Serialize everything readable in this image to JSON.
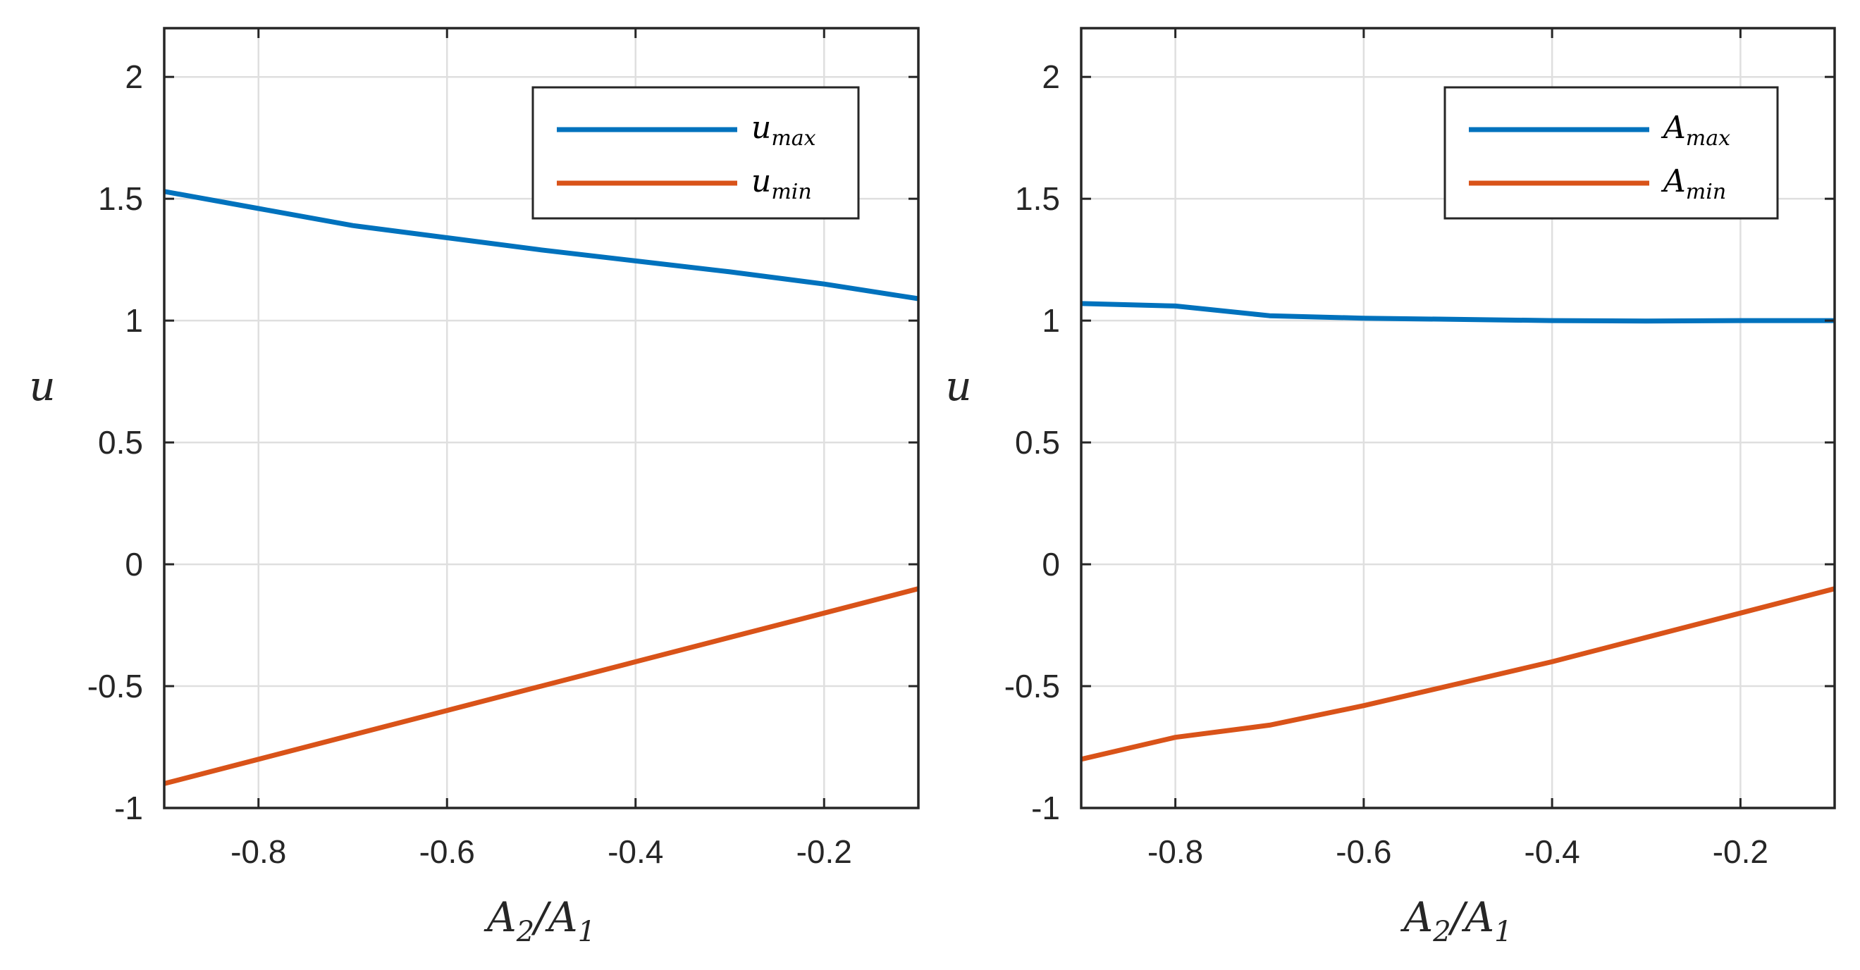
{
  "chart_data": [
    {
      "type": "line",
      "ylabel": "u",
      "xlabel": {
        "base": "A",
        "sub1": "2",
        "slash": "/",
        "base2": "A",
        "sub2": "1"
      },
      "xlim": [
        -0.9,
        -0.1
      ],
      "ylim": [
        -1,
        2.2
      ],
      "xticks": [
        -0.8,
        -0.6,
        -0.4,
        -0.2
      ],
      "xtick_labels": [
        "-0.8",
        "-0.6",
        "-0.4",
        "-0.2"
      ],
      "yticks": [
        -1,
        -0.5,
        0,
        0.5,
        1,
        1.5,
        2
      ],
      "ytick_labels": [
        "-1",
        "-0.5",
        "0",
        "0.5",
        "1",
        "1.5",
        "2"
      ],
      "grid": true,
      "legend_position": "top-right",
      "series": [
        {
          "name": "u_max",
          "label_base": "u",
          "label_sub": "max",
          "color": "#0072BD",
          "x": [
            -0.9,
            -0.8,
            -0.7,
            -0.6,
            -0.5,
            -0.4,
            -0.3,
            -0.2,
            -0.1
          ],
          "values": [
            1.53,
            1.46,
            1.39,
            1.34,
            1.29,
            1.245,
            1.2,
            1.15,
            1.09
          ]
        },
        {
          "name": "u_min",
          "label_base": "u",
          "label_sub": "min",
          "color": "#D95319",
          "x": [
            -0.9,
            -0.8,
            -0.7,
            -0.6,
            -0.5,
            -0.4,
            -0.3,
            -0.2,
            -0.1
          ],
          "values": [
            -0.9,
            -0.8,
            -0.7,
            -0.6,
            -0.5,
            -0.4,
            -0.3,
            -0.2,
            -0.1
          ]
        }
      ]
    },
    {
      "type": "line",
      "ylabel": "u",
      "xlabel": {
        "base": "A",
        "sub1": "2",
        "slash": "/",
        "base2": "A",
        "sub2": "1"
      },
      "xlim": [
        -0.9,
        -0.1
      ],
      "ylim": [
        -1,
        2.2
      ],
      "xticks": [
        -0.8,
        -0.6,
        -0.4,
        -0.2
      ],
      "xtick_labels": [
        "-0.8",
        "-0.6",
        "-0.4",
        "-0.2"
      ],
      "yticks": [
        -1,
        -0.5,
        0,
        0.5,
        1,
        1.5,
        2
      ],
      "ytick_labels": [
        "-1",
        "-0.5",
        "0",
        "0.5",
        "1",
        "1.5",
        "2"
      ],
      "grid": true,
      "legend_position": "top-right",
      "series": [
        {
          "name": "A_max",
          "label_base": "A",
          "label_sub": "max",
          "color": "#0072BD",
          "x": [
            -0.9,
            -0.8,
            -0.7,
            -0.6,
            -0.5,
            -0.4,
            -0.3,
            -0.2,
            -0.1
          ],
          "values": [
            1.07,
            1.06,
            1.02,
            1.01,
            1.005,
            1.0,
            0.998,
            1.0,
            1.0
          ]
        },
        {
          "name": "A_min",
          "label_base": "A",
          "label_sub": "min",
          "color": "#D95319",
          "x": [
            -0.9,
            -0.8,
            -0.7,
            -0.6,
            -0.5,
            -0.4,
            -0.3,
            -0.2,
            -0.1
          ],
          "values": [
            -0.8,
            -0.71,
            -0.66,
            -0.58,
            -0.49,
            -0.4,
            -0.3,
            -0.2,
            -0.1
          ]
        }
      ]
    }
  ]
}
